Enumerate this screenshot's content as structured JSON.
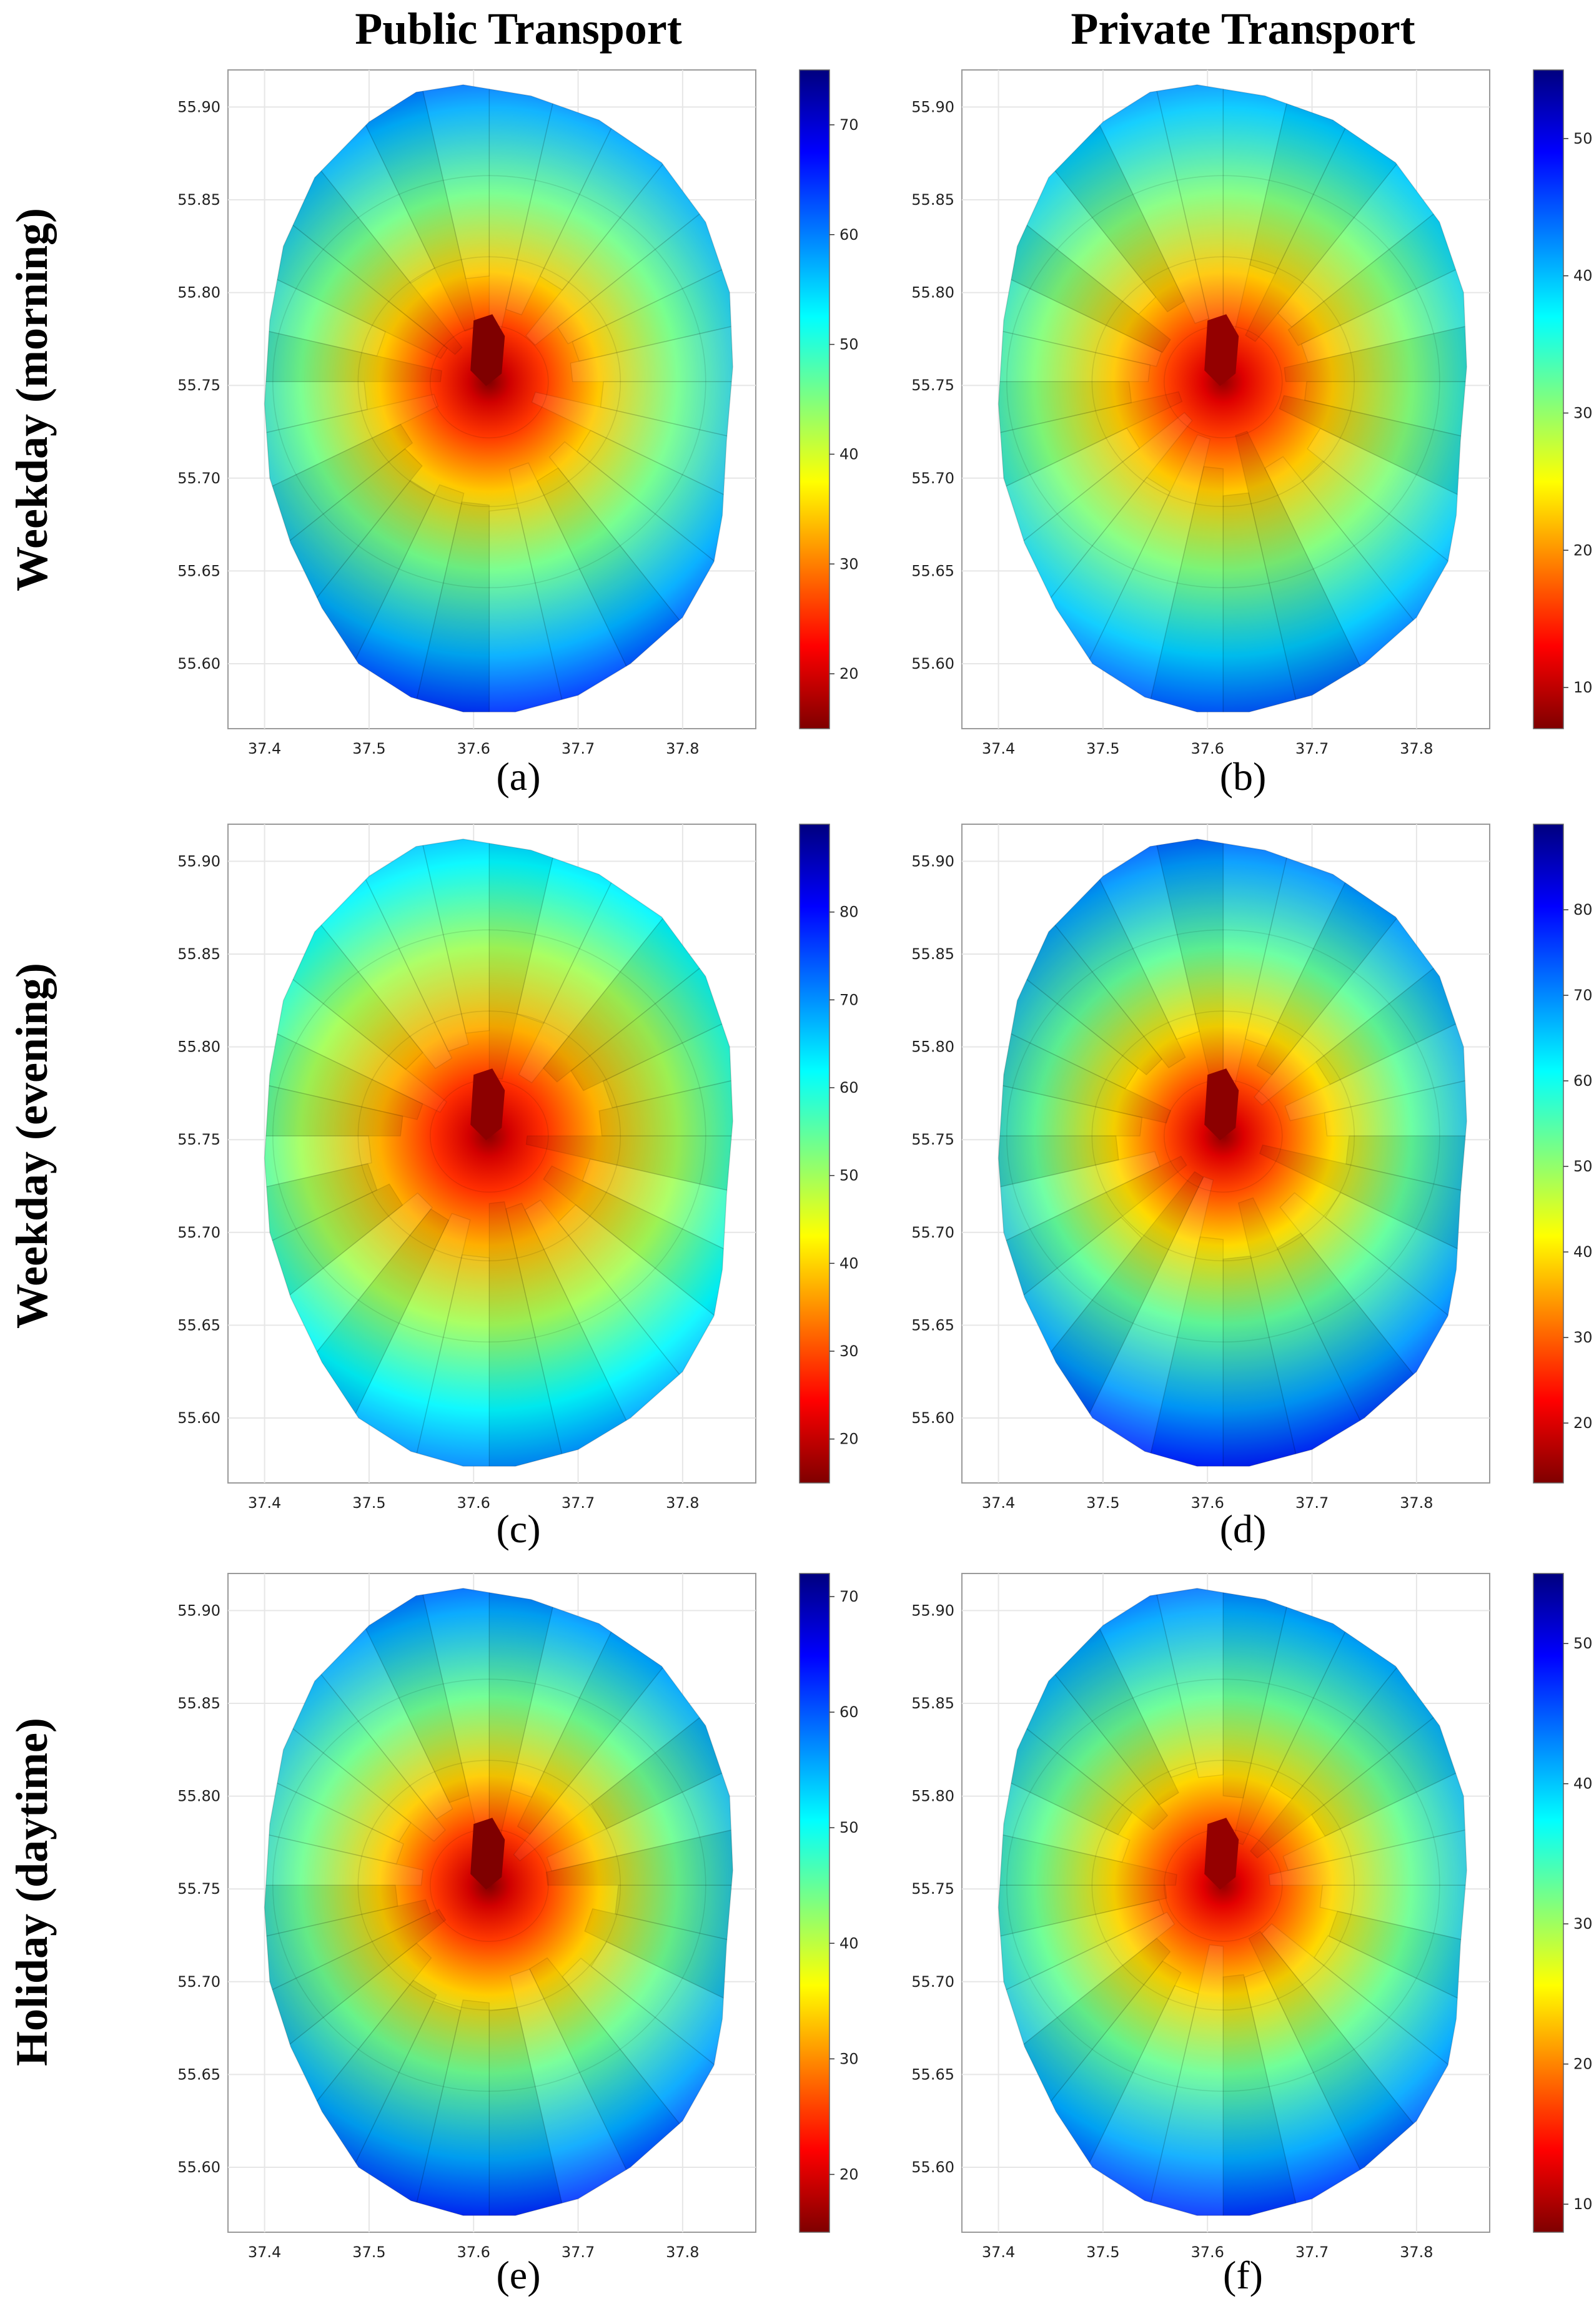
{
  "columns": [
    "Public Transport",
    "Private Transport"
  ],
  "rows": [
    "Weekday (morning)",
    "Weekday (evening)",
    "Holiday (daytime)"
  ],
  "colormap": {
    "name": "jet",
    "stops": [
      "#7f0000",
      "#ff0000",
      "#ff7f00",
      "#ffff00",
      "#7fff7f",
      "#00ffff",
      "#007fff",
      "#0000ff",
      "#00007f"
    ],
    "note": "low values = dark red, high values = dark blue"
  },
  "chart_data": [
    {
      "type": "heatmap",
      "panel_label": "(a)",
      "mode": "Public Transport",
      "period": "Weekday (morning)",
      "xlabel": "",
      "ylabel": "",
      "xlim": [
        37.365,
        37.87
      ],
      "ylim": [
        55.565,
        55.92
      ],
      "xticks": [
        "37.4",
        "37.5",
        "37.6",
        "37.7",
        "37.8"
      ],
      "yticks": [
        "55.60",
        "55.65",
        "55.70",
        "55.75",
        "55.80",
        "55.85",
        "55.90"
      ],
      "colorbar": {
        "min": 15,
        "max": 75,
        "ticks": [
          "20",
          "30",
          "40",
          "50",
          "60",
          "70"
        ]
      },
      "center_value": 15,
      "edge_value": 66
    },
    {
      "type": "heatmap",
      "panel_label": "(b)",
      "mode": "Private Transport",
      "period": "Weekday (morning)",
      "xlabel": "",
      "ylabel": "",
      "xlim": [
        37.365,
        37.87
      ],
      "ylim": [
        55.565,
        55.92
      ],
      "xticks": [
        "37.4",
        "37.5",
        "37.6",
        "37.7",
        "37.8"
      ],
      "yticks": [
        "55.60",
        "55.65",
        "55.70",
        "55.75",
        "55.80",
        "55.85",
        "55.90"
      ],
      "colorbar": {
        "min": 7,
        "max": 55,
        "ticks": [
          "10",
          "20",
          "30",
          "40",
          "50"
        ]
      },
      "center_value": 8,
      "edge_value": 46
    },
    {
      "type": "heatmap",
      "panel_label": "(c)",
      "mode": "Public Transport",
      "period": "Weekday (evening)",
      "xlabel": "",
      "ylabel": "",
      "xlim": [
        37.365,
        37.87
      ],
      "ylim": [
        55.565,
        55.92
      ],
      "xticks": [
        "37.4",
        "37.5",
        "37.6",
        "37.7",
        "37.8"
      ],
      "yticks": [
        "55.60",
        "55.65",
        "55.70",
        "55.75",
        "55.80",
        "55.85",
        "55.90"
      ],
      "colorbar": {
        "min": 15,
        "max": 90,
        "ticks": [
          "20",
          "30",
          "40",
          "50",
          "60",
          "70",
          "80"
        ]
      },
      "center_value": 16,
      "edge_value": 72
    },
    {
      "type": "heatmap",
      "panel_label": "(d)",
      "mode": "Private Transport",
      "period": "Weekday (evening)",
      "xlabel": "",
      "ylabel": "",
      "xlim": [
        37.365,
        37.87
      ],
      "ylim": [
        55.565,
        55.92
      ],
      "xticks": [
        "37.4",
        "37.5",
        "37.6",
        "37.7",
        "37.8"
      ],
      "yticks": [
        "55.60",
        "55.65",
        "55.70",
        "55.75",
        "55.80",
        "55.85",
        "55.90"
      ],
      "colorbar": {
        "min": 13,
        "max": 90,
        "ticks": [
          "20",
          "30",
          "40",
          "50",
          "60",
          "70",
          "80"
        ]
      },
      "center_value": 14,
      "edge_value": 80
    },
    {
      "type": "heatmap",
      "panel_label": "(e)",
      "mode": "Public Transport",
      "period": "Holiday (daytime)",
      "xlabel": "",
      "ylabel": "",
      "xlim": [
        37.365,
        37.87
      ],
      "ylim": [
        55.565,
        55.92
      ],
      "xticks": [
        "37.4",
        "37.5",
        "37.6",
        "37.7",
        "37.8"
      ],
      "yticks": [
        "55.60",
        "55.65",
        "55.70",
        "55.75",
        "55.80",
        "55.85",
        "55.90"
      ],
      "colorbar": {
        "min": 15,
        "max": 72,
        "ticks": [
          "20",
          "30",
          "40",
          "50",
          "60",
          "70"
        ]
      },
      "center_value": 15,
      "edge_value": 64
    },
    {
      "type": "heatmap",
      "panel_label": "(f)",
      "mode": "Private Transport",
      "period": "Holiday (daytime)",
      "xlabel": "",
      "ylabel": "",
      "xlim": [
        37.365,
        37.87
      ],
      "ylim": [
        55.565,
        55.92
      ],
      "xticks": [
        "37.4",
        "37.5",
        "37.6",
        "37.7",
        "37.8"
      ],
      "yticks": [
        "55.60",
        "55.65",
        "55.70",
        "55.75",
        "55.80",
        "55.85",
        "55.90"
      ],
      "colorbar": {
        "min": 8,
        "max": 55,
        "ticks": [
          "10",
          "20",
          "30",
          "40",
          "50"
        ]
      },
      "center_value": 9,
      "edge_value": 48
    }
  ]
}
